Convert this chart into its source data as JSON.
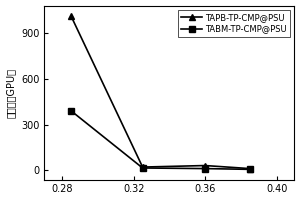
{
  "series": [
    {
      "label": "TAPB-TP-CMP@PSU",
      "x": [
        0.285,
        0.325,
        0.36,
        0.385
      ],
      "y": [
        1010,
        22,
        32,
        12
      ],
      "marker": "^",
      "color": "#000000",
      "linestyle": "-"
    },
    {
      "label": "TABM-TP-CMP@PSU",
      "x": [
        0.285,
        0.325,
        0.36,
        0.385
      ],
      "y": [
        390,
        16,
        12,
        7
      ],
      "marker": "s",
      "color": "#000000",
      "linestyle": "-"
    }
  ],
  "ylabel_lines": [
    "滲透率（GPU）"
  ],
  "xlim": [
    0.27,
    0.41
  ],
  "ylim": [
    -60,
    1080
  ],
  "xticks": [
    0.28,
    0.32,
    0.36,
    0.4
  ],
  "yticks": [
    0,
    300,
    600,
    900
  ],
  "background_color": "#ffffff",
  "legend_loc": "upper right"
}
